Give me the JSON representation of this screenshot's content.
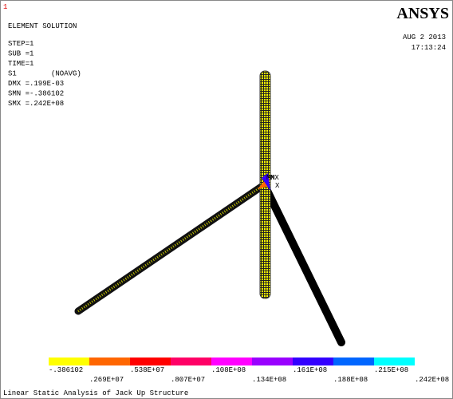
{
  "window_number": "1",
  "header": {
    "title": "ELEMENT SOLUTION",
    "lines": [
      "STEP=1",
      "SUB =1",
      "TIME=1",
      "S1        (NOAVG)",
      "DMX =.199E-03",
      "SMN =-.386102",
      "SMX =.242E+08"
    ]
  },
  "logo": "ANSYS",
  "date": "AUG  2 2013",
  "time": "17:13:24",
  "markers": {
    "min": "MN",
    "max": "MX",
    "axis": "X"
  },
  "legend": {
    "colors": [
      "#ffff00",
      "#ff6600",
      "#ff0000",
      "#ff0066",
      "#ff00ff",
      "#9900ff",
      "#3300ff",
      "#0066ff",
      "#00ffff"
    ],
    "labels": [
      "-.386102",
      ".269E+07",
      ".538E+07",
      ".807E+07",
      ".108E+08",
      ".134E+08",
      ".161E+08",
      ".188E+08",
      ".215E+08",
      ".242E+08"
    ]
  },
  "footer": "Linear Static Analysis of Jack Up Structure"
}
